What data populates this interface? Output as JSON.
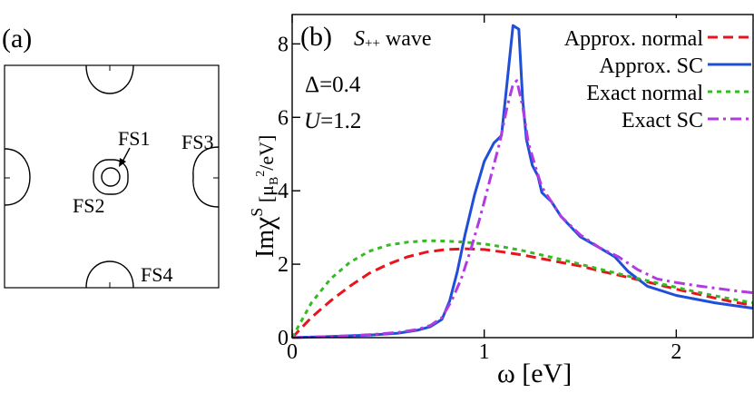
{
  "panel_a": {
    "label": "(a)",
    "fs_labels": [
      "FS1",
      "FS2",
      "FS3",
      "FS4"
    ]
  },
  "panel_b": {
    "label": "(b)",
    "wave_symbol": "S",
    "wave_super": "++",
    "wave_word": "wave",
    "delta_text": "Δ=0.4",
    "u_symbol": "U",
    "u_value": "=1.2"
  },
  "chart_data": {
    "type": "line",
    "title": "",
    "xlabel": "ω [eV]",
    "ylabel": "ImχS [μB²/eV]",
    "ylabel_parts": {
      "im": "Im",
      "chi": "χ",
      "sup": "S",
      "unit_open": " [μ",
      "unit_sub": "B",
      "unit_sup": "2",
      "unit_close": "/eV]"
    },
    "xlim": [
      0,
      2.4
    ],
    "ylim": [
      0,
      8.8
    ],
    "xticks": [
      0,
      1,
      2
    ],
    "xtick_labels": [
      "0",
      "1",
      "2"
    ],
    "yticks": [
      0,
      2,
      4,
      6,
      8
    ],
    "ytick_labels": [
      "0",
      "2",
      "4",
      "6",
      "8"
    ],
    "legend_position": "top-right",
    "series": [
      {
        "name": "Approx. normal",
        "color": "#e8141c",
        "dash": "dashed",
        "x": [
          0,
          0.1,
          0.2,
          0.3,
          0.4,
          0.5,
          0.6,
          0.7,
          0.8,
          0.9,
          1.0,
          1.1,
          1.2,
          1.3,
          1.4,
          1.5,
          1.6,
          1.7,
          1.8,
          1.9,
          2.0,
          2.1,
          2.2,
          2.3,
          2.4
        ],
        "y": [
          0,
          0.55,
          1.0,
          1.4,
          1.75,
          2.0,
          2.2,
          2.33,
          2.4,
          2.42,
          2.4,
          2.33,
          2.25,
          2.15,
          2.05,
          1.95,
          1.82,
          1.7,
          1.58,
          1.45,
          1.32,
          1.2,
          1.08,
          0.97,
          0.88
        ]
      },
      {
        "name": "Approx. SC",
        "color": "#1f4fd6",
        "dash": "solid",
        "x": [
          0,
          0.2,
          0.4,
          0.55,
          0.65,
          0.72,
          0.78,
          0.82,
          0.86,
          0.9,
          0.95,
          1.0,
          1.05,
          1.09,
          1.12,
          1.15,
          1.18,
          1.2,
          1.22,
          1.25,
          1.28,
          1.3,
          1.35,
          1.4,
          1.5,
          1.6,
          1.68,
          1.75,
          1.85,
          2.0,
          2.2,
          2.4
        ],
        "y": [
          0,
          0.03,
          0.07,
          0.12,
          0.2,
          0.3,
          0.5,
          1.0,
          1.8,
          2.8,
          3.9,
          4.8,
          5.3,
          5.5,
          7.0,
          8.5,
          8.4,
          6.5,
          5.4,
          4.7,
          4.4,
          3.95,
          3.7,
          3.3,
          2.75,
          2.45,
          2.2,
          1.8,
          1.4,
          1.15,
          0.95,
          0.8
        ]
      },
      {
        "name": "Exact normal",
        "color": "#33bb22",
        "dash": "dotted",
        "x": [
          0,
          0.1,
          0.2,
          0.3,
          0.4,
          0.5,
          0.6,
          0.7,
          0.8,
          0.9,
          1.0,
          1.1,
          1.2,
          1.3,
          1.4,
          1.5,
          1.6,
          1.7,
          1.8,
          1.9,
          2.0,
          2.1,
          2.2,
          2.3,
          2.4
        ],
        "y": [
          0,
          0.95,
          1.6,
          2.05,
          2.35,
          2.52,
          2.6,
          2.64,
          2.63,
          2.6,
          2.55,
          2.47,
          2.37,
          2.25,
          2.13,
          2.0,
          1.87,
          1.74,
          1.61,
          1.49,
          1.37,
          1.25,
          1.14,
          1.04,
          0.95
        ]
      },
      {
        "name": "Exact SC",
        "color": "#b13be0",
        "dash": "dashdot",
        "x": [
          0,
          0.2,
          0.4,
          0.55,
          0.65,
          0.72,
          0.78,
          0.83,
          0.88,
          0.93,
          0.98,
          1.03,
          1.08,
          1.12,
          1.15,
          1.17,
          1.2,
          1.23,
          1.27,
          1.3,
          1.35,
          1.4,
          1.5,
          1.6,
          1.7,
          1.8,
          1.9,
          2.0,
          2.1,
          2.2,
          2.3,
          2.4
        ],
        "y": [
          0,
          0.03,
          0.08,
          0.14,
          0.22,
          0.33,
          0.55,
          1.0,
          1.6,
          2.4,
          3.3,
          4.3,
          5.3,
          6.3,
          6.9,
          7.0,
          6.3,
          5.3,
          4.6,
          4.1,
          3.7,
          3.3,
          2.8,
          2.45,
          2.2,
          1.85,
          1.6,
          1.5,
          1.42,
          1.35,
          1.28,
          1.22
        ]
      }
    ]
  }
}
